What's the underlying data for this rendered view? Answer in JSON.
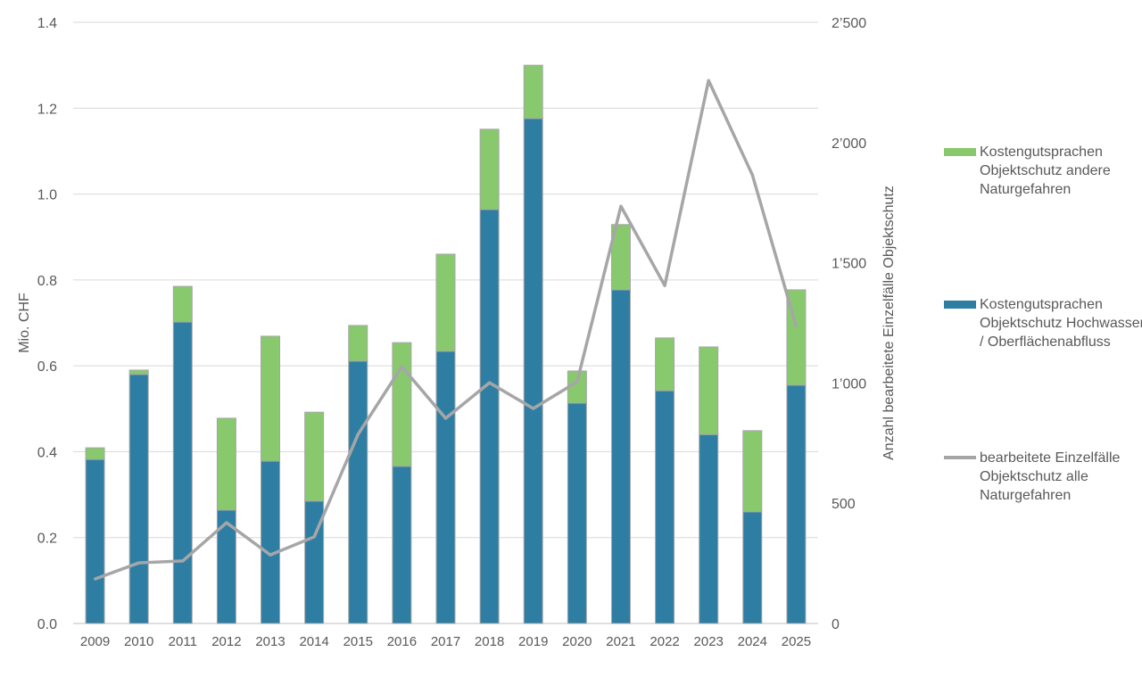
{
  "chart_data": {
    "type": "bar",
    "stacked": true,
    "categories": [
      "2009",
      "2010",
      "2011",
      "2012",
      "2013",
      "2014",
      "2015",
      "2016",
      "2017",
      "2018",
      "2019",
      "2020",
      "2021",
      "2022",
      "2023",
      "2024",
      "2025"
    ],
    "series": [
      {
        "name": "Kostengutsprachen Objektschutz Hochwasser / Oberflächenabfluss",
        "type": "bar",
        "axis": "left",
        "color": "#2e7ea3",
        "values": [
          0.382,
          0.58,
          0.702,
          0.264,
          0.378,
          0.285,
          0.611,
          0.366,
          0.634,
          0.964,
          1.176,
          0.513,
          0.777,
          0.542,
          0.44,
          0.26,
          0.555
        ]
      },
      {
        "name": "Kostengutsprachen Objektschutz andere Naturgefahren",
        "type": "bar",
        "axis": "left",
        "color": "#88c96e",
        "values": [
          0.027,
          0.01,
          0.083,
          0.214,
          0.291,
          0.207,
          0.083,
          0.288,
          0.226,
          0.187,
          0.124,
          0.075,
          0.152,
          0.123,
          0.204,
          0.189,
          0.222
        ]
      },
      {
        "name": "bearbeitete Einzelfälle Objektschutz alle Naturgefahren",
        "type": "line",
        "axis": "right",
        "color": "#a6a6a8",
        "values": [
          185,
          252,
          260,
          419,
          285,
          360,
          786,
          1068,
          853,
          1001,
          894,
          1005,
          1735,
          1405,
          2258,
          1865,
          1235
        ]
      }
    ],
    "ylabel": "Mio. CHF",
    "ylim": [
      0,
      1.4
    ],
    "yticks": [
      "0.0",
      "0.2",
      "0.4",
      "0.6",
      "0.8",
      "1.0",
      "1.2",
      "1.4"
    ],
    "y2label": "Anzahl bearbeitete Einzelfälle Objektschutz",
    "y2lim": [
      0,
      2500
    ],
    "y2ticks": [
      "0",
      "500",
      "1’000",
      "1’500",
      "2’000",
      "2’500"
    ],
    "grid": true,
    "legend_placement": "right"
  }
}
